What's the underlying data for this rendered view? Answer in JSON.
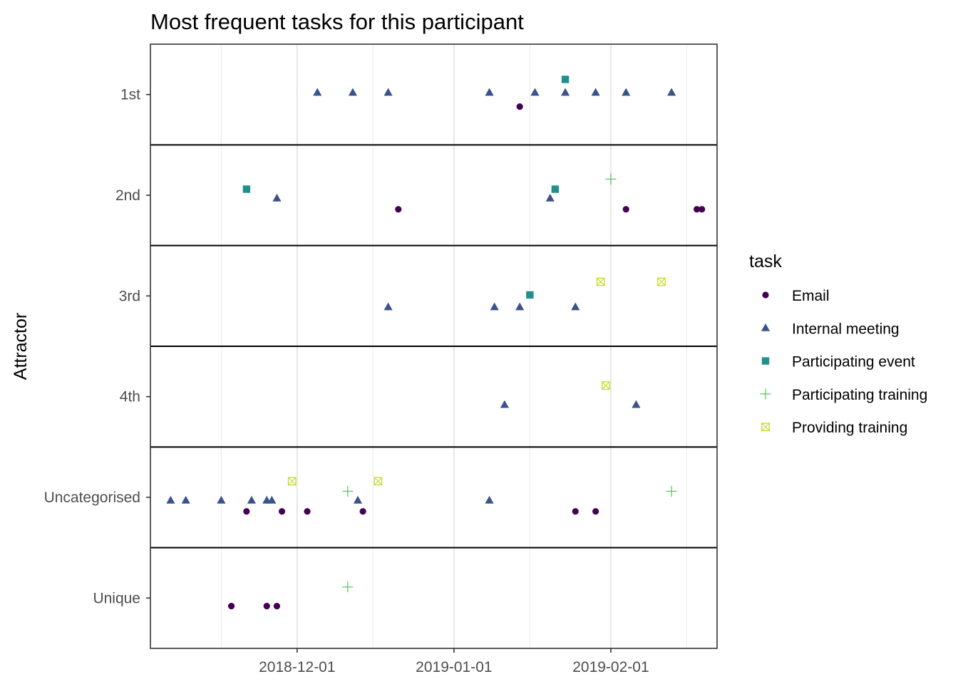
{
  "chart_data": {
    "type": "scatter",
    "title": "Most frequent tasks for this participant",
    "xlabel": "",
    "ylabel": "Attractor",
    "x_type": "date",
    "xlim": [
      "2018-11-02",
      "2019-02-22"
    ],
    "x_ticks": [
      "2018-12-01",
      "2019-01-01",
      "2019-02-01"
    ],
    "categories": [
      "1st",
      "2nd",
      "3rd",
      "4th",
      "Uncategorised",
      "Unique"
    ],
    "grid": true,
    "legend": {
      "title": "task",
      "position": "right"
    },
    "series": [
      {
        "name": "Email",
        "color": "#440154",
        "shape": "circle",
        "points": [
          {
            "x": "2019-01-14",
            "y": "1st",
            "jitter": -0.12
          },
          {
            "x": "2018-12-21",
            "y": "2nd",
            "jitter": -0.14
          },
          {
            "x": "2019-02-04",
            "y": "2nd",
            "jitter": -0.14
          },
          {
            "x": "2019-02-18",
            "y": "2nd",
            "jitter": -0.14
          },
          {
            "x": "2019-02-19",
            "y": "2nd",
            "jitter": -0.14
          },
          {
            "x": "2018-11-21",
            "y": "Uncategorised",
            "jitter": -0.14
          },
          {
            "x": "2018-11-28",
            "y": "Uncategorised",
            "jitter": -0.14
          },
          {
            "x": "2018-12-03",
            "y": "Uncategorised",
            "jitter": -0.14
          },
          {
            "x": "2018-12-14",
            "y": "Uncategorised",
            "jitter": -0.14
          },
          {
            "x": "2019-01-25",
            "y": "Uncategorised",
            "jitter": -0.14
          },
          {
            "x": "2019-01-29",
            "y": "Uncategorised",
            "jitter": -0.14
          },
          {
            "x": "2018-11-18",
            "y": "Unique",
            "jitter": -0.08
          },
          {
            "x": "2018-11-25",
            "y": "Unique",
            "jitter": -0.08
          },
          {
            "x": "2018-11-27",
            "y": "Unique",
            "jitter": -0.08
          }
        ]
      },
      {
        "name": "Internal meeting",
        "color": "#3b528b",
        "shape": "triangle",
        "points": [
          {
            "x": "2018-12-05",
            "y": "1st",
            "jitter": 0.02
          },
          {
            "x": "2018-12-12",
            "y": "1st",
            "jitter": 0.02
          },
          {
            "x": "2018-12-19",
            "y": "1st",
            "jitter": 0.02
          },
          {
            "x": "2019-01-08",
            "y": "1st",
            "jitter": 0.02
          },
          {
            "x": "2019-01-17",
            "y": "1st",
            "jitter": 0.02
          },
          {
            "x": "2019-01-23",
            "y": "1st",
            "jitter": 0.02
          },
          {
            "x": "2019-01-29",
            "y": "1st",
            "jitter": 0.02
          },
          {
            "x": "2019-02-04",
            "y": "1st",
            "jitter": 0.02
          },
          {
            "x": "2019-02-13",
            "y": "1st",
            "jitter": 0.02
          },
          {
            "x": "2018-11-27",
            "y": "2nd",
            "jitter": -0.03
          },
          {
            "x": "2019-01-20",
            "y": "2nd",
            "jitter": -0.03
          },
          {
            "x": "2018-12-19",
            "y": "3rd",
            "jitter": -0.11
          },
          {
            "x": "2019-01-09",
            "y": "3rd",
            "jitter": -0.11
          },
          {
            "x": "2019-01-14",
            "y": "3rd",
            "jitter": -0.11
          },
          {
            "x": "2019-01-25",
            "y": "3rd",
            "jitter": -0.11
          },
          {
            "x": "2019-01-11",
            "y": "4th",
            "jitter": -0.08
          },
          {
            "x": "2019-02-06",
            "y": "4th",
            "jitter": -0.08
          },
          {
            "x": "2018-11-06",
            "y": "Uncategorised",
            "jitter": -0.03
          },
          {
            "x": "2018-11-09",
            "y": "Uncategorised",
            "jitter": -0.03
          },
          {
            "x": "2018-11-16",
            "y": "Uncategorised",
            "jitter": -0.03
          },
          {
            "x": "2018-11-22",
            "y": "Uncategorised",
            "jitter": -0.03
          },
          {
            "x": "2018-11-25",
            "y": "Uncategorised",
            "jitter": -0.03
          },
          {
            "x": "2018-11-26",
            "y": "Uncategorised",
            "jitter": -0.03
          },
          {
            "x": "2018-12-13",
            "y": "Uncategorised",
            "jitter": -0.03
          },
          {
            "x": "2019-01-08",
            "y": "Uncategorised",
            "jitter": -0.03
          }
        ]
      },
      {
        "name": "Participating event",
        "color": "#21908c",
        "shape": "square",
        "points": [
          {
            "x": "2019-01-23",
            "y": "1st",
            "jitter": 0.15
          },
          {
            "x": "2018-11-21",
            "y": "2nd",
            "jitter": 0.06
          },
          {
            "x": "2019-01-21",
            "y": "2nd",
            "jitter": 0.06
          },
          {
            "x": "2019-01-16",
            "y": "3rd",
            "jitter": 0.01
          }
        ]
      },
      {
        "name": "Participating training",
        "color": "#5ec962",
        "shape": "plus",
        "points": [
          {
            "x": "2019-02-01",
            "y": "2nd",
            "jitter": 0.16
          },
          {
            "x": "2018-12-11",
            "y": "Uncategorised",
            "jitter": 0.06
          },
          {
            "x": "2019-02-13",
            "y": "Uncategorised",
            "jitter": 0.06
          },
          {
            "x": "2018-12-11",
            "y": "Unique",
            "jitter": 0.11
          }
        ]
      },
      {
        "name": "Providing training",
        "color": "#c7d92a",
        "shape": "boxx",
        "points": [
          {
            "x": "2019-01-30",
            "y": "3rd",
            "jitter": 0.14
          },
          {
            "x": "2019-02-11",
            "y": "3rd",
            "jitter": 0.14
          },
          {
            "x": "2019-01-31",
            "y": "4th",
            "jitter": 0.11
          },
          {
            "x": "2018-11-30",
            "y": "Uncategorised",
            "jitter": 0.16
          },
          {
            "x": "2018-12-17",
            "y": "Uncategorised",
            "jitter": 0.16
          }
        ]
      }
    ]
  }
}
